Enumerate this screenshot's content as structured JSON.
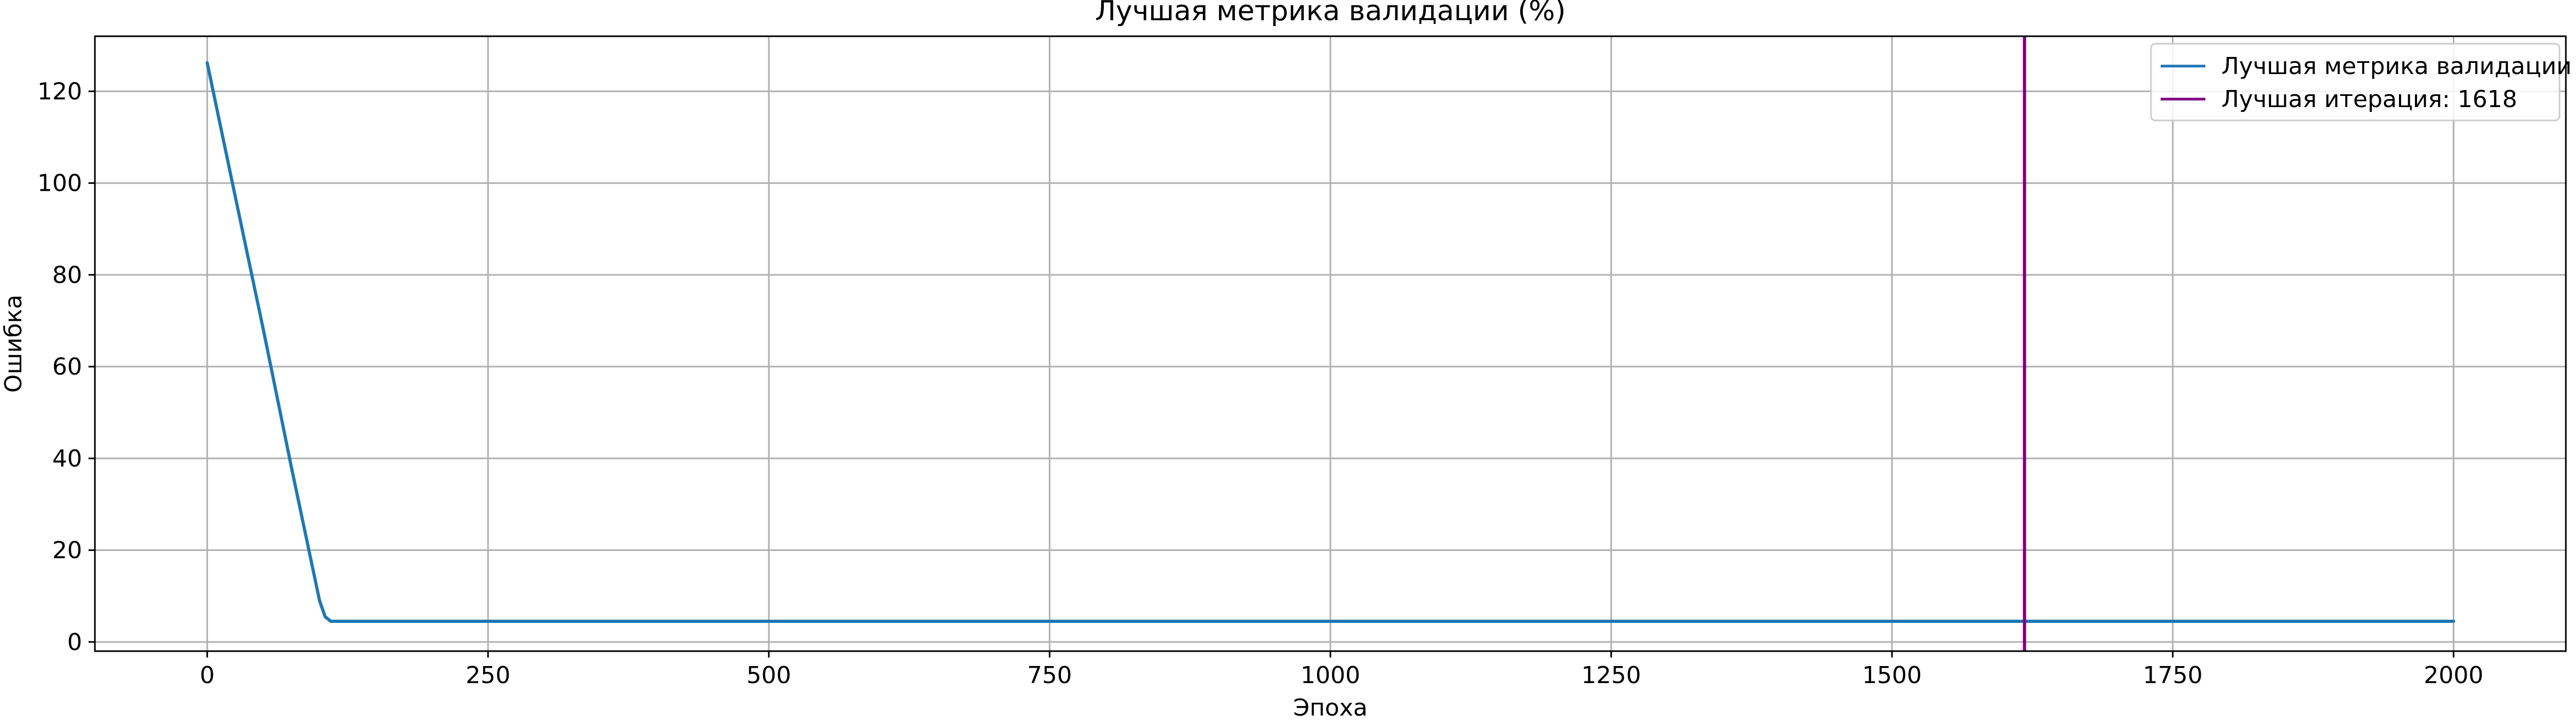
{
  "chart_data": {
    "type": "line",
    "title": "Лучшая метрика валидации (%)",
    "xlabel": "Эпоха",
    "ylabel": "Ошибка",
    "xlim": [
      -100,
      2100
    ],
    "ylim": [
      -2,
      132
    ],
    "x_ticks": [
      "0",
      "250",
      "500",
      "750",
      "1000",
      "1250",
      "1500",
      "1750",
      "2000"
    ],
    "y_ticks": [
      "0",
      "20",
      "40",
      "60",
      "80",
      "100",
      "120"
    ],
    "grid": true,
    "legend_position": "top-right",
    "series": [
      {
        "name": "Лучшая метрика валидации",
        "color": "#1f77b4",
        "points": [
          [
            0,
            126.2
          ],
          [
            25,
            97
          ],
          [
            50,
            68
          ],
          [
            75,
            38
          ],
          [
            100,
            9
          ],
          [
            105,
            5.5
          ],
          [
            110,
            4.5
          ],
          [
            2000,
            4.5
          ]
        ]
      }
    ],
    "vline": {
      "x": 1618,
      "label": "Лучшая итерация: 1618",
      "color": "#800080"
    }
  }
}
